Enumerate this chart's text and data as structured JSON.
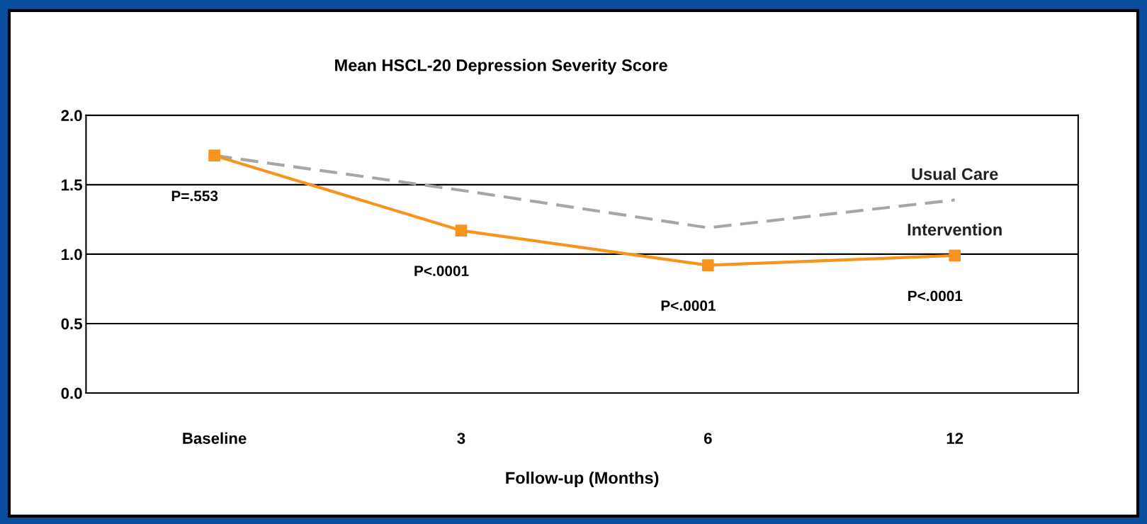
{
  "chart_data": {
    "type": "line",
    "title": "Mean HSCL-20 Depression Severity Score",
    "xlabel": "Follow-up (Months)",
    "categories": [
      "Baseline",
      "3",
      "6",
      "12"
    ],
    "series": [
      {
        "name": "Usual Care",
        "color": "#a6a6a6",
        "values": [
          1.71,
          1.46,
          1.19,
          1.39
        ],
        "line_style": "dashed",
        "marker": "none"
      },
      {
        "name": "Intervention",
        "color": "#f7941d",
        "values": [
          1.71,
          1.17,
          0.92,
          0.99
        ],
        "line_style": "solid",
        "marker": "square"
      }
    ],
    "ylim": [
      0,
      2
    ],
    "yticks": [
      {
        "value": 0,
        "label": "0.0"
      },
      {
        "value": 0.5,
        "label": "0.5"
      },
      {
        "value": 1,
        "label": "1.0"
      },
      {
        "value": 1.5,
        "label": "1.5"
      },
      {
        "value": 2,
        "label": "2.0"
      }
    ],
    "grid": "y",
    "legend": false,
    "annotations": [
      "P=.553",
      "P<.0001",
      "P<.0001",
      "P<.0001"
    ]
  }
}
